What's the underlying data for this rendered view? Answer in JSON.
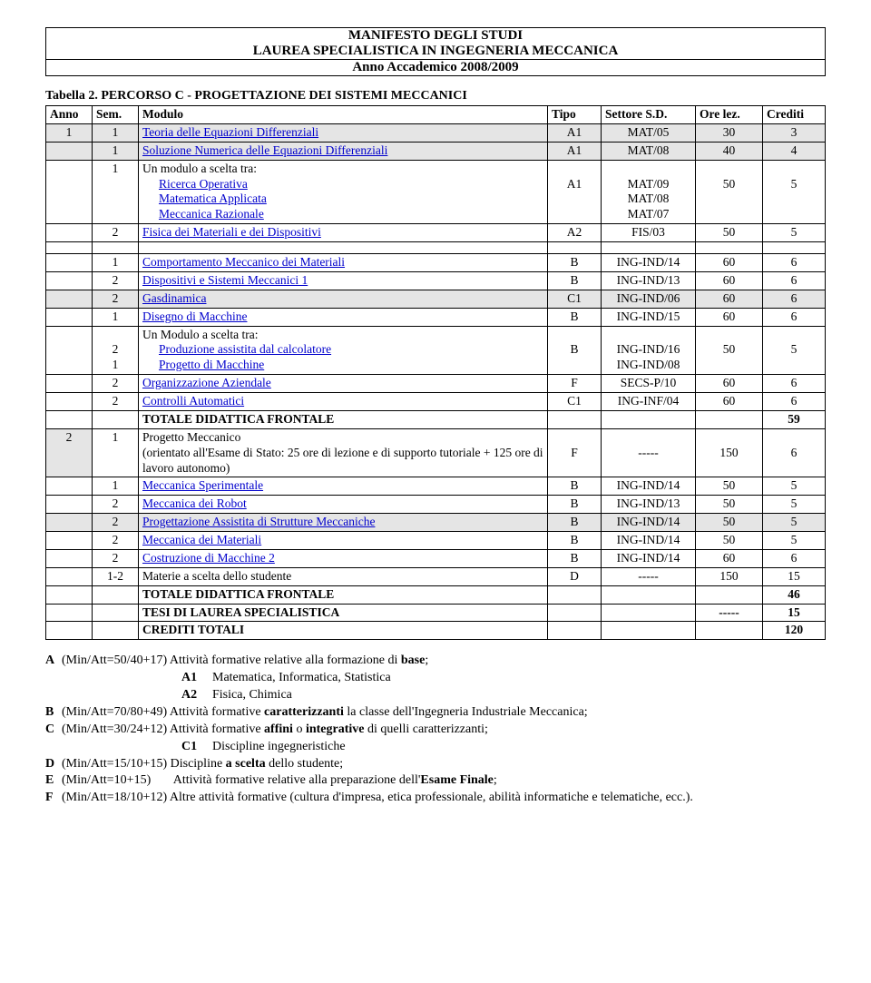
{
  "header": {
    "line1": "MANIFESTO DEGLI STUDI",
    "line2": "LAUREA SPECIALISTICA IN INGEGNERIA MECCANICA",
    "line3": "Anno Accademico 2008/2009"
  },
  "caption": "Tabella 2. PERCORSO C - PROGETTAZIONE DEI SISTEMI MECCANICI",
  "columns": {
    "anno": "Anno",
    "sem": "Sem.",
    "modulo": "Modulo",
    "tipo": "Tipo",
    "settore": "Settore S.D.",
    "ore": "Ore lez.",
    "crediti": "Crediti"
  },
  "rows_block1": [
    {
      "anno": "1",
      "sem": "1",
      "modulo": "Teoria delle Equazioni Differenziali",
      "link": true,
      "tipo": "A1",
      "settore": "MAT/05",
      "ore": "30",
      "crediti": "3",
      "shade": true
    },
    {
      "anno": "",
      "sem": "1",
      "modulo": "Soluzione Numerica delle Equazioni  Differenziali",
      "link": true,
      "tipo": "A1",
      "settore": "MAT/08",
      "ore": "40",
      "crediti": "4",
      "shade": true
    }
  ],
  "row_scelta_hdr": {
    "anno": "",
    "sem": "1",
    "modulo": "Un modulo a scelta tra:"
  },
  "row_scelta_opts": {
    "opt1": "Ricerca Operativa",
    "opt2": "Matematica Applicata",
    "opt3": "Meccanica Razionale",
    "tipo": "A1",
    "settore1": "MAT/09",
    "settore2": "MAT/08",
    "settore3": "MAT/07",
    "ore": "50",
    "crediti": "5"
  },
  "row_fisica": {
    "anno": "",
    "sem": "2",
    "modulo": "Fisica dei Materiali e dei Dispositivi",
    "link": true,
    "tipo": "A2",
    "settore": "FIS/03",
    "ore": "50",
    "crediti": "5"
  },
  "rows_block2": [
    {
      "anno": "",
      "sem": "1",
      "modulo": "Comportamento Meccanico dei Materiali",
      "link": true,
      "tipo": "B",
      "settore": "ING-IND/14",
      "ore": "60",
      "crediti": "6"
    },
    {
      "anno": "",
      "sem": "2",
      "modulo": "Dispositivi e Sistemi Meccanici 1",
      "link": true,
      "tipo": "B",
      "settore": "ING-IND/13",
      "ore": "60",
      "crediti": "6"
    },
    {
      "anno": "",
      "sem": "2",
      "modulo": "Gasdinamica",
      "link": true,
      "tipo": "C1",
      "settore": "ING-IND/06",
      "ore": "60",
      "crediti": "6",
      "shade": true
    },
    {
      "anno": "",
      "sem": "1",
      "modulo": "Disegno di Macchine",
      "link": true,
      "tipo": "B",
      "settore": "ING-IND/15",
      "ore": "60",
      "crediti": "6"
    }
  ],
  "row_scelta2_hdr": {
    "modulo": "Un Modulo a scelta tra:"
  },
  "row_scelta2": {
    "sem1": "2",
    "sem2": "1",
    "opt1": "Produzione assistita dal calcolatore",
    "opt2": "Progetto di Macchine",
    "tipo": "B",
    "settore1": "ING-IND/16",
    "settore2": "ING-IND/08",
    "ore": "50",
    "crediti": "5"
  },
  "rows_block3": [
    {
      "anno": "",
      "sem": "2",
      "modulo": "Organizzazione Aziendale",
      "link": true,
      "tipo": "F",
      "settore": "SECS-P/10",
      "ore": "60",
      "crediti": "6"
    },
    {
      "anno": "",
      "sem": "2",
      "modulo": "Controlli Automatici",
      "link": true,
      "tipo": "C1",
      "settore": "ING-INF/04",
      "ore": "60",
      "crediti": "6"
    }
  ],
  "row_totale1": {
    "modulo": "TOTALE DIDATTICA FRONTALE",
    "crediti": "59"
  },
  "row_progetto": {
    "anno": "2",
    "sem": "1",
    "modulo": "Progetto Meccanico",
    "sub": "(orientato all'Esame di Stato: 25 ore di lezione e di supporto tutoriale + 125 ore di lavoro autonomo)",
    "tipo": "F",
    "settore": "-----",
    "ore": "150",
    "crediti": "6"
  },
  "rows_block4": [
    {
      "anno": "",
      "sem": "1",
      "modulo": "Meccanica Sperimentale",
      "link": true,
      "tipo": "B",
      "settore": "ING-IND/14",
      "ore": "50",
      "crediti": "5"
    },
    {
      "anno": "",
      "sem": "2",
      "modulo": "Meccanica dei Robot",
      "link": true,
      "tipo": "B",
      "settore": "ING-IND/13",
      "ore": "50",
      "crediti": "5"
    },
    {
      "anno": "",
      "sem": "2",
      "modulo": "Progettazione Assistita di Strutture Meccaniche",
      "link": true,
      "tipo": "B",
      "settore": "ING-IND/14",
      "ore": "50",
      "crediti": "5",
      "shade": true
    },
    {
      "anno": "",
      "sem": "2",
      "modulo": "Meccanica dei Materiali",
      "link": true,
      "tipo": "B",
      "settore": "ING-IND/14",
      "ore": "50",
      "crediti": "5"
    },
    {
      "anno": "",
      "sem": "2",
      "modulo": "Costruzione di Macchine 2",
      "link": true,
      "tipo": "B",
      "settore": "ING-IND/14",
      "ore": "60",
      "crediti": "6"
    },
    {
      "anno": "",
      "sem": "1-2",
      "modulo": "Materie a scelta dello studente",
      "link": false,
      "tipo": "D",
      "settore": "-----",
      "ore": "150",
      "crediti": "15"
    }
  ],
  "row_totale2": {
    "modulo": "TOTALE DIDATTICA FRONTALE",
    "crediti": "46"
  },
  "row_tesi": {
    "modulo": "TESI DI LAUREA SPECIALISTICA",
    "ore": "-----",
    "crediti": "15"
  },
  "row_credtot": {
    "modulo": "CREDITI TOTALI",
    "crediti": "120"
  },
  "legend": {
    "A": {
      "pre": "(Min/Att=50/40+17)",
      "txt": " Attività formative relative alla formazione di ",
      "bold": "base",
      "suffix": ";"
    },
    "A1": {
      "code": "A1",
      "txt": "Matematica, Informatica, Statistica"
    },
    "A2": {
      "code": "A2",
      "txt": "Fisica, Chimica"
    },
    "B": {
      "pre": "(Min/Att=70/80+49)",
      "txt": " Attività formative ",
      "bold": "caratterizzanti",
      "suffix": " la classe dell'Ingegneria Industriale Meccanica;"
    },
    "C": {
      "pre": "(Min/Att=30/24+12)",
      "txt": " Attività formative ",
      "bold": "affini",
      "mid": " o ",
      "bold2": "integrative",
      "suffix": " di quelli caratterizzanti;"
    },
    "C1": {
      "code": "C1",
      "txt": "Discipline ingegneristiche"
    },
    "D": {
      "pre": "(Min/Att=15/10+15)",
      "txt": " Discipline ",
      "bold": "a scelta",
      "suffix": " dello studente;"
    },
    "E": {
      "pre": "(Min/Att=10+15)",
      "txt": "Attività formative relative alla preparazione dell'",
      "bold": "Esame Finale",
      "suffix": ";"
    },
    "F": {
      "pre": "(Min/Att=18/10+12)",
      "txt": " Altre attività formative (cultura d'impresa, etica professionale, abilità informatiche e telematiche, ecc.)."
    }
  }
}
